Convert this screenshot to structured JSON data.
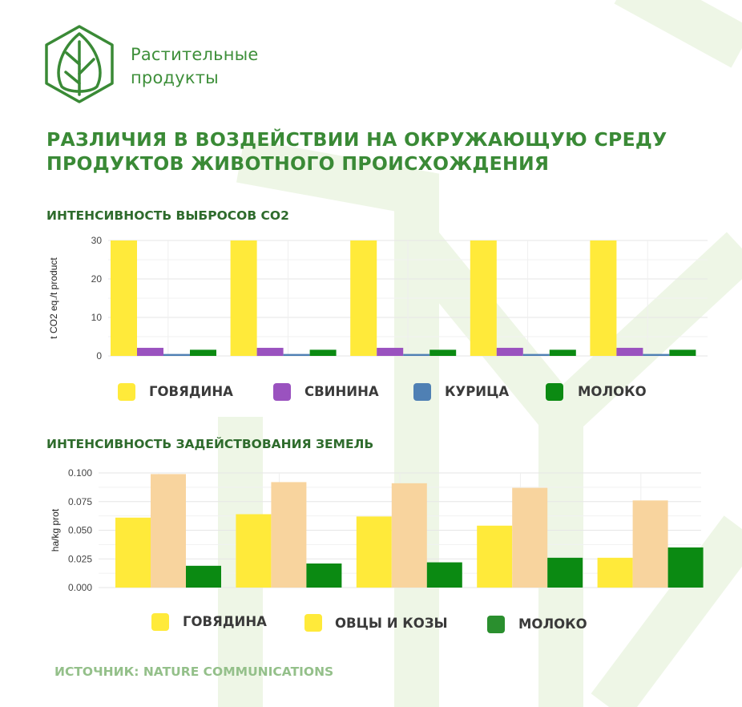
{
  "brand": {
    "line1": "Растительные",
    "line2": "продукты",
    "logo_icon": "leaf-hexagon-icon"
  },
  "title": {
    "line1": "РАЗЛИЧИЯ В ВОЗДЕЙСТВИИ НА ОКРУЖАЮЩУЮ СРЕДУ",
    "line2": "ПРОДУКТОВ ЖИВОТНОГО ПРОИСХОЖДЕНИЯ"
  },
  "colors": {
    "brand_green": "#3a8a36",
    "beef": "#ffea3a",
    "pork": "#9a52bf",
    "chicken": "#4f80b4",
    "milk": "#0b8a12",
    "sheep_goat": "#f8d49e",
    "bg_deco": "#eef6e6"
  },
  "charts": {
    "co2": {
      "title": "ИНТЕНСИВНОСТЬ ВЫБРОСОВ СО2",
      "legend": [
        {
          "label": "ГОВЯДИНА",
          "color": "#ffea3a"
        },
        {
          "label": "СВИНИНА",
          "color": "#9a52bf"
        },
        {
          "label": "КУРИЦА",
          "color": "#4f80b4"
        },
        {
          "label": "МОЛОКО",
          "color": "#0b8a12"
        }
      ]
    },
    "land": {
      "title": "ИНТЕНСИВНОСТЬ ЗАДЕЙСТВОВАНИЯ ЗЕМЕЛЬ",
      "legend": [
        {
          "label": "ГОВЯДИНА",
          "color": "#ffea3a"
        },
        {
          "label": "ОВЦЫ И КОЗЫ",
          "color": "#ffea3a"
        },
        {
          "label": "МОЛОКО",
          "color": "#2a8f2e"
        }
      ]
    }
  },
  "chart_data": [
    {
      "type": "bar",
      "title": "ИНТЕНСИВНОСТЬ ВЫБРОСОВ СО2",
      "ylabel": "t CO2 eq./t product",
      "xlabel": "",
      "ylim": [
        0,
        30
      ],
      "yticks": [
        0,
        10,
        20,
        30
      ],
      "grid": true,
      "categories": [
        "",
        "",
        "",
        "",
        ""
      ],
      "series": [
        {
          "name": "ГОВЯДИНА",
          "color": "#ffea3a",
          "values": [
            30,
            30,
            30,
            30,
            30
          ]
        },
        {
          "name": "СВИНИНА",
          "color": "#9a52bf",
          "values": [
            2.1,
            2.1,
            2.1,
            2.1,
            2.1
          ]
        },
        {
          "name": "КУРИЦА",
          "color": "#4f80b4",
          "values": [
            0.5,
            0.5,
            0.5,
            0.5,
            0.5
          ]
        },
        {
          "name": "МОЛОКО",
          "color": "#0b8a12",
          "values": [
            1.6,
            1.6,
            1.6,
            1.6,
            1.6
          ]
        }
      ]
    },
    {
      "type": "bar",
      "title": "ИНТЕНСИВНОСТЬ ЗАДЕЙСТВОВАНИЯ ЗЕМЕЛЬ",
      "ylabel": "ha/kg prot",
      "xlabel": "",
      "ylim": [
        0,
        0.1
      ],
      "yticks": [
        "0.000",
        "0.025",
        "0.050",
        "0.075",
        "0.100"
      ],
      "grid": true,
      "categories": [
        "",
        "",
        "",
        "",
        ""
      ],
      "series": [
        {
          "name": "ГОВЯДИНА",
          "color": "#ffea3a",
          "values": [
            0.061,
            0.064,
            0.062,
            0.054,
            0.026
          ]
        },
        {
          "name": "ОВЦЫ И КОЗЫ",
          "color": "#f8d49e",
          "values": [
            0.099,
            0.092,
            0.091,
            0.087,
            0.076
          ]
        },
        {
          "name": "МОЛОКО",
          "color": "#0b8a12",
          "values": [
            0.019,
            0.021,
            0.022,
            0.026,
            0.035
          ]
        }
      ]
    }
  ],
  "source": "ИСТОЧНИК: NATURE COMMUNICATIONS"
}
